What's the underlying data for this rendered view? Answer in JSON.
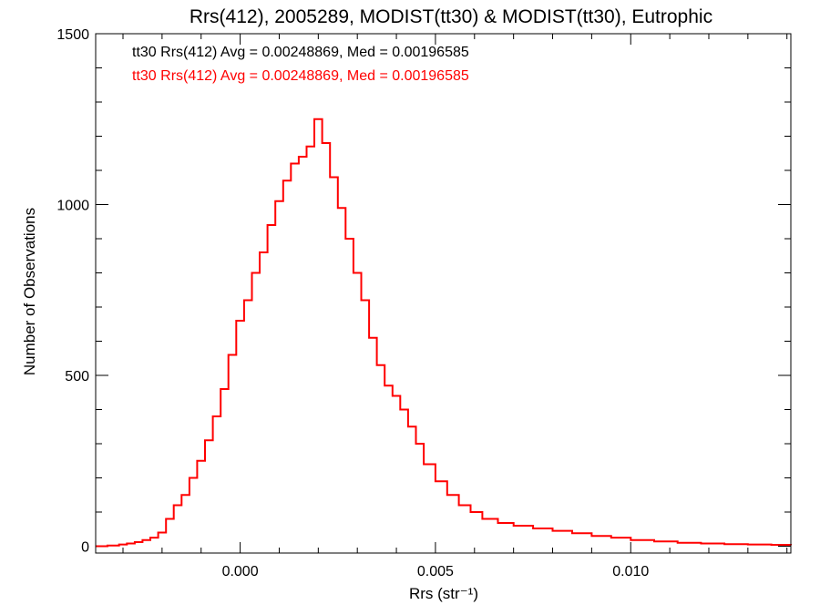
{
  "chart_data": {
    "type": "histogram-step",
    "title": "Rrs(412), 2005289, MODIST(tt30) & MODIST(tt30), Eutrophic",
    "xlabel": "Rrs (str⁻¹)",
    "ylabel": "Number of Observations",
    "xlim": [
      -0.0037,
      0.0141
    ],
    "ylim": [
      -20,
      1500
    ],
    "x_ticks": [
      {
        "value": 0.0,
        "label": "0.000"
      },
      {
        "value": 0.005,
        "label": "0.005"
      },
      {
        "value": 0.01,
        "label": "0.010"
      }
    ],
    "y_ticks": [
      {
        "value": 0,
        "label": "0"
      },
      {
        "value": 500,
        "label": "500"
      },
      {
        "value": 1000,
        "label": "1000"
      },
      {
        "value": 1500,
        "label": "1500"
      }
    ],
    "legend": [
      {
        "text": "tt30 Rrs(412) Avg = 0.00248869, Med = 0.00196585",
        "color": "#000000"
      },
      {
        "text": "tt30 Rrs(412) Avg = 0.00248869, Med = 0.00196585",
        "color": "#ff0000"
      }
    ],
    "series": [
      {
        "color": "#ff0000",
        "x": [
          -0.0037,
          -0.0034,
          -0.0031,
          -0.0029,
          -0.0027,
          -0.0025,
          -0.0023,
          -0.0021,
          -0.0019,
          -0.0017,
          -0.0015,
          -0.0013,
          -0.0011,
          -0.0009,
          -0.0007,
          -0.0005,
          -0.0003,
          -0.0001,
          0.0001,
          0.0003,
          0.0005,
          0.0007,
          0.0009,
          0.0011,
          0.0013,
          0.0015,
          0.0017,
          0.0019,
          0.0021,
          0.0023,
          0.0025,
          0.0027,
          0.0029,
          0.0031,
          0.0033,
          0.0035,
          0.0037,
          0.0039,
          0.0041,
          0.0043,
          0.0045,
          0.0047,
          0.005,
          0.0053,
          0.0056,
          0.0059,
          0.0062,
          0.0066,
          0.007,
          0.0075,
          0.008,
          0.0085,
          0.009,
          0.0095,
          0.01,
          0.0106,
          0.0112,
          0.0118,
          0.0124,
          0.013,
          0.0136,
          0.0141
        ],
        "y": [
          0,
          2,
          5,
          8,
          12,
          18,
          25,
          40,
          80,
          120,
          150,
          200,
          250,
          310,
          380,
          460,
          560,
          660,
          720,
          800,
          860,
          940,
          1010,
          1070,
          1120,
          1140,
          1170,
          1250,
          1180,
          1080,
          990,
          900,
          800,
          720,
          610,
          530,
          470,
          440,
          400,
          350,
          300,
          240,
          190,
          150,
          120,
          100,
          80,
          68,
          60,
          52,
          45,
          38,
          30,
          25,
          18,
          14,
          10,
          8,
          6,
          5,
          4,
          3
        ]
      }
    ]
  }
}
